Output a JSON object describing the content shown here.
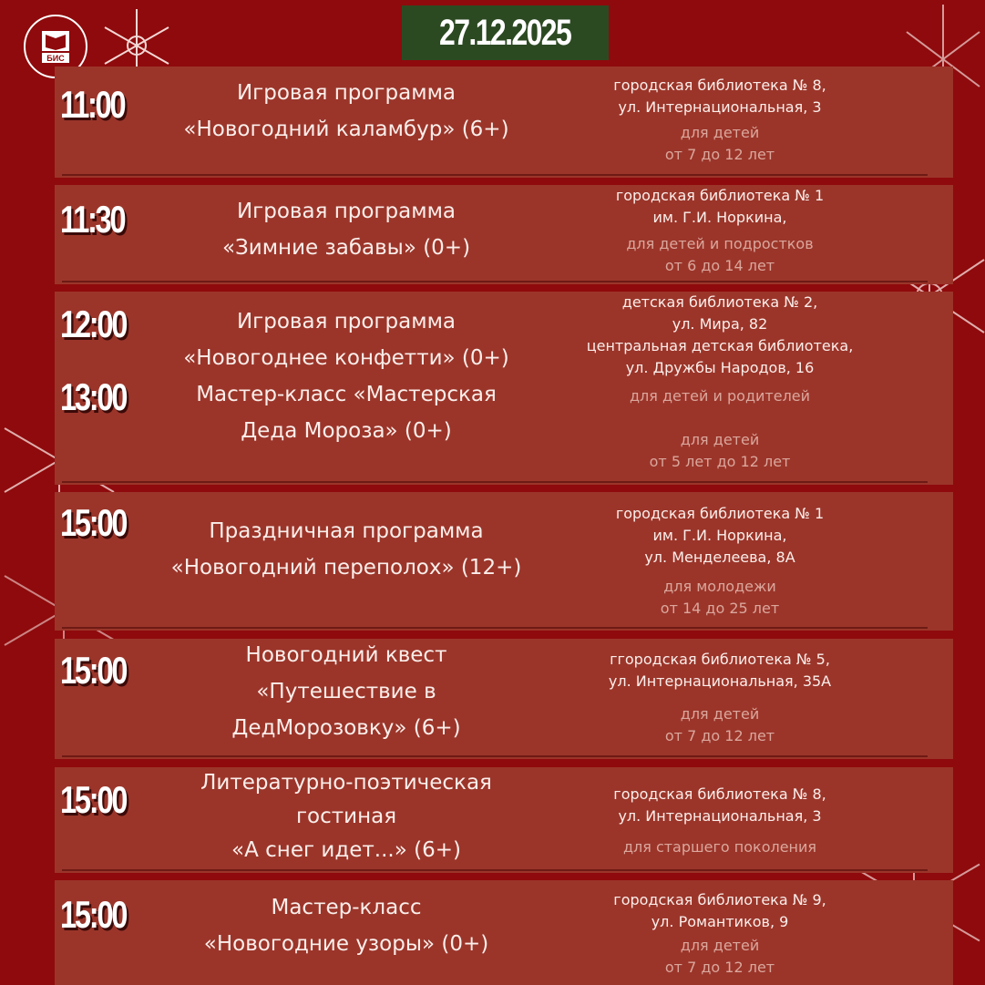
{
  "date": "27.12.2025",
  "logo_text": "БИС",
  "events": [
    {
      "times": [
        "11:00"
      ],
      "title": [
        "Игровая программа",
        "«Новогодний каламбур» (6+)"
      ],
      "place": [
        "городская библиотека № 8,",
        "ул. Интернациональная, 3"
      ],
      "audience": [
        "для детей",
        "от 7 до 12 лет"
      ]
    },
    {
      "times": [
        "11:30"
      ],
      "title": [
        "Игровая программа",
        "«Зимние забавы» (0+)"
      ],
      "place": [
        "городская библиотека № 1",
        "им. Г.И. Норкина,"
      ],
      "audience": [
        "для детей и подростков",
        "от 6 до 14 лет"
      ]
    },
    {
      "times": [
        "12:00",
        "13:00"
      ],
      "title": [
        "Игровая программа",
        "«Новогоднее конфетти» (0+)",
        "Мастер-класс «Мастерская",
        "Деда Мороза» (0+)"
      ],
      "place": [
        "детская библиотека № 2,",
        "ул. Мира, 82",
        "центральная детская библиотека,",
        "ул. Дружбы Народов, 16"
      ],
      "audience": [
        "для детей и родителей",
        "",
        "для детей",
        "от 5 лет до 12 лет"
      ]
    },
    {
      "times": [
        "15:00"
      ],
      "title": [
        "Праздничная программа",
        "«Новогодний переполох» (12+)"
      ],
      "place": [
        "городская библиотека № 1",
        "им. Г.И. Норкина,",
        "ул. Менделеева, 8А"
      ],
      "audience": [
        "для молодежи",
        "от 14 до 25 лет"
      ]
    },
    {
      "times": [
        "15:00"
      ],
      "title": [
        "Новогодний квест",
        "«Путешествие в",
        "ДедМорозовку» (6+)"
      ],
      "place": [
        "ггородская библиотека № 5,",
        "ул. Интернациональная, 35А"
      ],
      "audience": [
        "для детей",
        "от 7 до 12 лет"
      ]
    },
    {
      "times": [
        "15:00"
      ],
      "title": [
        "Литературно-поэтическая",
        "гостиная",
        "«А снег идет...» (6+)"
      ],
      "place": [
        "городская библиотека № 8,",
        "ул. Интернациональная, 3"
      ],
      "audience": [
        "для старшего поколения"
      ]
    },
    {
      "times": [
        "15:00"
      ],
      "title": [
        "Мастер-класс",
        "«Новогодние узоры» (0+)"
      ],
      "place": [
        "городская библиотека № 9,",
        "ул. Романтиков, 9"
      ],
      "audience": [
        "для детей",
        "от 7 до 12 лет"
      ]
    }
  ],
  "colors": {
    "background": "#8f0a0c",
    "card": "#9b352a",
    "date_box": "#2c4a22"
  }
}
